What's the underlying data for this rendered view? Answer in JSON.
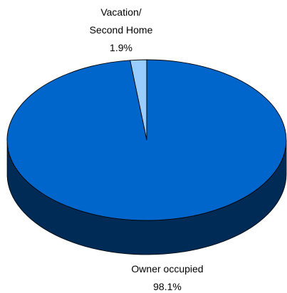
{
  "chart_data": {
    "type": "pie",
    "style": "3d",
    "slices": [
      {
        "label_lines": [
          "Vacation/",
          "Second Home"
        ],
        "value_label": "1.9%",
        "value": 1.9,
        "color": "#99ccff"
      },
      {
        "label_lines": [
          "Owner occupied"
        ],
        "value_label": "98.1%",
        "value": 98.1,
        "color": "#0066cc"
      }
    ]
  }
}
